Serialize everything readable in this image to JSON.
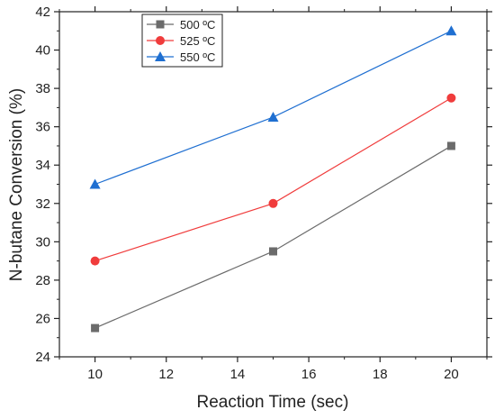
{
  "chart_data": {
    "type": "line",
    "title": "",
    "xlabel": "Reaction Time (sec)",
    "ylabel": "N-butane Conversion (%)",
    "xlim": [
      9,
      21
    ],
    "ylim": [
      24,
      42
    ],
    "xticks": [
      10,
      12,
      14,
      16,
      18,
      20
    ],
    "yticks": [
      24,
      26,
      28,
      30,
      32,
      34,
      36,
      38,
      40,
      42
    ],
    "grid": false,
    "legend_position": "top-left",
    "x": [
      10,
      15,
      20
    ],
    "series": [
      {
        "name": "500 ºC",
        "values": [
          25.5,
          29.5,
          35.0
        ],
        "color": "#6b6b6b",
        "marker": "square"
      },
      {
        "name": "525 ºC",
        "values": [
          29.0,
          32.0,
          37.5
        ],
        "color": "#f03c3c",
        "marker": "circle"
      },
      {
        "name": "550 ºC",
        "values": [
          33.0,
          36.5,
          41.0
        ],
        "color": "#1f6fd1",
        "marker": "triangle"
      }
    ]
  }
}
